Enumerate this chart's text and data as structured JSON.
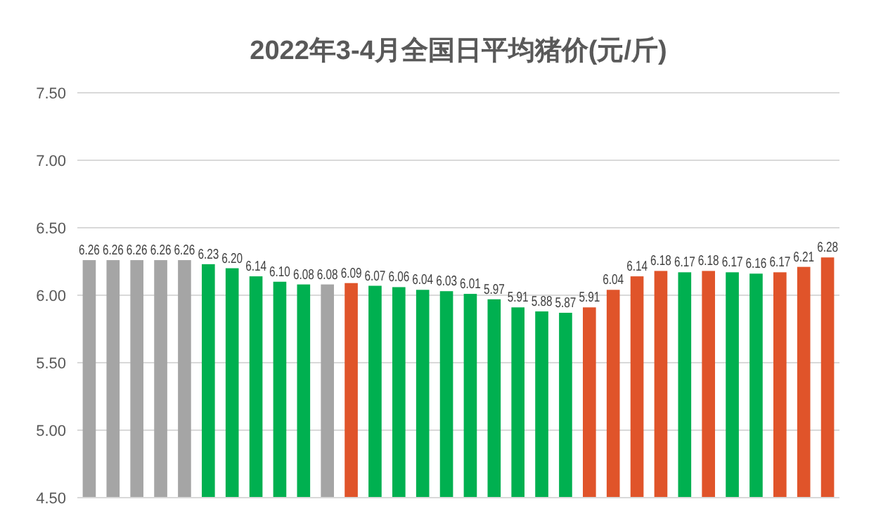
{
  "chart_data": {
    "type": "bar",
    "title": "2022年3-4月全国日平均猪价(元/斤)",
    "categories": [
      null,
      null,
      null,
      null,
      null,
      null,
      null,
      null,
      null,
      null,
      null,
      null,
      null,
      null,
      null,
      null,
      null,
      null,
      null,
      null,
      null,
      null,
      null,
      null,
      null,
      null,
      null,
      null,
      null,
      null,
      null,
      null
    ],
    "values": [
      6.26,
      6.26,
      6.26,
      6.26,
      6.26,
      6.23,
      6.2,
      6.14,
      6.1,
      6.08,
      6.08,
      6.09,
      6.07,
      6.06,
      6.04,
      6.03,
      6.01,
      5.97,
      5.91,
      5.88,
      5.87,
      5.91,
      6.04,
      6.14,
      6.18,
      6.17,
      6.18,
      6.17,
      6.16,
      6.17,
      6.21,
      6.28
    ],
    "value_labels": [
      "6.26",
      "6.26",
      "6.26",
      "6.26",
      "6.26",
      "6.23",
      "6.20",
      "6.14",
      "6.10",
      "6.08",
      "6.08",
      "6.09",
      "6.07",
      "6.06",
      "6.04",
      "6.03",
      "6.01",
      "5.97",
      "5.91",
      "5.88",
      "5.87",
      "5.91",
      "6.04",
      "6.14",
      "6.18",
      "6.17",
      "6.18",
      "6.17",
      "6.16",
      "6.17",
      "6.21",
      "6.28"
    ],
    "colors": [
      "#a5a5a5",
      "#a5a5a5",
      "#a5a5a5",
      "#a5a5a5",
      "#a5a5a5",
      "#00b050",
      "#00b050",
      "#00b050",
      "#00b050",
      "#00b050",
      "#a5a5a5",
      "#e0542a",
      "#00b050",
      "#00b050",
      "#00b050",
      "#00b050",
      "#00b050",
      "#00b050",
      "#00b050",
      "#00b050",
      "#00b050",
      "#e0542a",
      "#e0542a",
      "#e0542a",
      "#e0542a",
      "#00b050",
      "#e0542a",
      "#00b050",
      "#00b050",
      "#e0542a",
      "#e0542a",
      "#e0542a"
    ],
    "ylim": [
      4.5,
      7.5
    ],
    "yticks": [
      {
        "value": 4.5,
        "label": "4.50"
      },
      {
        "value": 5,
        "label": "5.00"
      },
      {
        "value": 5.5,
        "label": "5.50"
      },
      {
        "value": 6,
        "label": "6.00"
      },
      {
        "value": 6.5,
        "label": "6.50"
      },
      {
        "value": 7,
        "label": "7.00"
      },
      {
        "value": 7.5,
        "label": "7.50"
      }
    ],
    "grid": "y"
  }
}
